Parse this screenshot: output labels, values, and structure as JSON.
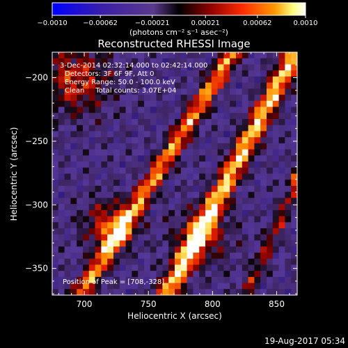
{
  "chart_data": {
    "type": "heatmap",
    "title": "Reconstructed RHESSI Image",
    "xlabel": "Heliocentric X (arcsec)",
    "ylabel": "Heliocentric Y (arcsec)",
    "xlim": [
      675,
      866
    ],
    "ylim": [
      -371,
      -180
    ],
    "xticks": [
      700,
      750,
      800,
      850
    ],
    "yticks": [
      -200,
      -250,
      -300,
      -350
    ],
    "xtick_labels": [
      "700",
      "750",
      "800",
      "850"
    ],
    "ytick_labels": [
      "−200",
      "−250",
      "−300",
      "−350"
    ],
    "colorbar": {
      "range": [
        -0.001,
        0.001
      ],
      "ticks": [
        -0.001,
        -0.00062,
        -0.00021,
        0.00021,
        0.00062,
        0.001
      ],
      "tick_labels": [
        "−0.0010",
        "−0.00062",
        "−0.00021",
        "0.00021",
        "0.00062",
        "0.0010"
      ],
      "unit_label": "(photons cm⁻² s⁻¹ asec⁻²)"
    },
    "annotations": [
      "3-Dec-2014 02:32:14.000 to 02:42:14.000",
      "Detectors: 3F 6F 9F, Att 0",
      "Energy Range: 50.0 - 100.0 keV",
      "Clean     Total counts: 3.07E+04",
      "Position of Peak = [708,-328]"
    ],
    "peak": [
      708,
      -328
    ],
    "colors": {
      "colormap": [
        "#0000ff",
        "#3b1fa8",
        "#5a3a8c",
        "#000000",
        "#8b0000",
        "#ff2a00",
        "#ff9a00",
        "#ffff80",
        "#ffffff"
      ]
    }
  },
  "footer": {
    "timestamp": "19-Aug-2017 05:34"
  }
}
